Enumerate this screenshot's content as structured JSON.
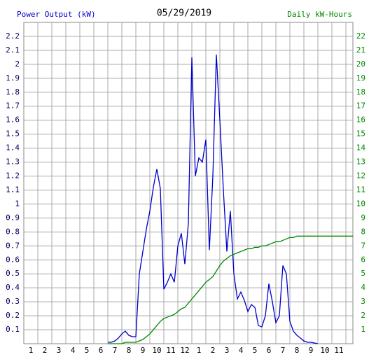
{
  "chart_data": {
    "type": "line",
    "title": "05/29/2019",
    "y_label": "Power Output (kW)",
    "y2_label": "Daily kW-Hours",
    "x": [
      6,
      6.25,
      6.5,
      6.75,
      7,
      7.25,
      7.5,
      7.75,
      8,
      8.25,
      8.5,
      8.75,
      9,
      9.25,
      9.5,
      9.75,
      10,
      10.25,
      10.5,
      10.75,
      11,
      11.25,
      11.5,
      11.75,
      12,
      12.25,
      12.5,
      12.75,
      13,
      13.25,
      13.5,
      13.75,
      14,
      14.25,
      14.5,
      14.75,
      15,
      15.25,
      15.5,
      15.75,
      16,
      16.25,
      16.5,
      16.75,
      17,
      17.25,
      17.5,
      17.75,
      18,
      18.25,
      18.5,
      18.75,
      19,
      19.25,
      19.5,
      19.75,
      20,
      20.25,
      20.5,
      20.75,
      21,
      21.25,
      21.5,
      21.75,
      22,
      22.25,
      22.5,
      22.75,
      23,
      23.25,
      23.5
    ],
    "series": [
      {
        "name": "Power Output (kW)",
        "color": "#0000cc",
        "values": [
          0.01,
          0.01,
          0.02,
          0.04,
          0.07,
          0.09,
          0.06,
          0.05,
          0.05,
          0.5,
          0.66,
          0.82,
          0.95,
          1.12,
          1.25,
          1.11,
          0.39,
          0.44,
          0.5,
          0.44,
          0.7,
          0.79,
          0.57,
          0.86,
          2.05,
          1.2,
          1.33,
          1.3,
          1.46,
          0.67,
          1.2,
          2.07,
          1.6,
          1.1,
          0.66,
          0.95,
          0.5,
          0.32,
          0.37,
          0.31,
          0.23,
          0.28,
          0.26,
          0.13,
          0.12,
          0.2,
          0.43,
          0.3,
          0.15,
          0.2,
          0.56,
          0.5,
          0.16,
          0.09,
          0.06,
          0.04,
          0.02,
          0.01,
          0.01,
          0.005,
          0,
          null,
          null,
          null,
          null,
          null,
          null,
          null,
          null,
          null,
          null
        ]
      },
      {
        "name": "Daily kW-Hours",
        "color": "#008800",
        "axis": "y2",
        "values": [
          0,
          0,
          0,
          0,
          0,
          0.1,
          0.1,
          0.1,
          0.1,
          0.2,
          0.3,
          0.5,
          0.7,
          1.0,
          1.3,
          1.6,
          1.8,
          1.9,
          2.0,
          2.1,
          2.3,
          2.5,
          2.6,
          2.9,
          3.2,
          3.5,
          3.8,
          4.1,
          4.4,
          4.6,
          4.8,
          5.2,
          5.6,
          5.9,
          6.1,
          6.3,
          6.4,
          6.5,
          6.6,
          6.7,
          6.8,
          6.8,
          6.9,
          6.9,
          7.0,
          7.0,
          7.1,
          7.2,
          7.3,
          7.3,
          7.4,
          7.5,
          7.6,
          7.6,
          7.7,
          7.7,
          7.7,
          7.7,
          7.7,
          7.7,
          7.7,
          7.7,
          7.7,
          7.7,
          7.7,
          7.7,
          7.7,
          7.7,
          7.7,
          7.7,
          7.7
        ]
      }
    ],
    "xlim": [
      0,
      23.5
    ],
    "xticks": [
      1,
      2,
      3,
      4,
      5,
      6,
      7,
      8,
      9,
      10,
      11,
      12,
      {
        "value": 13,
        "label": "1"
      },
      {
        "value": 14,
        "label": "2"
      },
      {
        "value": 15,
        "label": "3"
      },
      {
        "value": 16,
        "label": "4"
      },
      {
        "value": 17,
        "label": "5"
      },
      {
        "value": 18,
        "label": "6"
      },
      {
        "value": 19,
        "label": "7"
      },
      {
        "value": 20,
        "label": "8"
      },
      {
        "value": 21,
        "label": "9"
      },
      {
        "value": 22,
        "label": "10"
      },
      {
        "value": 23,
        "label": "11"
      }
    ],
    "ylim": [
      0,
      2.3
    ],
    "yticks": [
      0.1,
      0.2,
      0.3,
      0.4,
      0.5,
      0.6,
      0.7,
      0.8,
      0.9,
      1.0,
      1.1,
      1.2,
      1.3,
      1.4,
      1.5,
      1.6,
      1.7,
      1.8,
      1.9,
      2.0,
      2.1,
      2.2
    ],
    "y2lim": [
      0,
      23
    ],
    "y2ticks": [
      1,
      2,
      3,
      4,
      5,
      6,
      7,
      8,
      9,
      10,
      11,
      12,
      13,
      14,
      15,
      16,
      17,
      18,
      19,
      20,
      21,
      22
    ],
    "grid": true
  }
}
